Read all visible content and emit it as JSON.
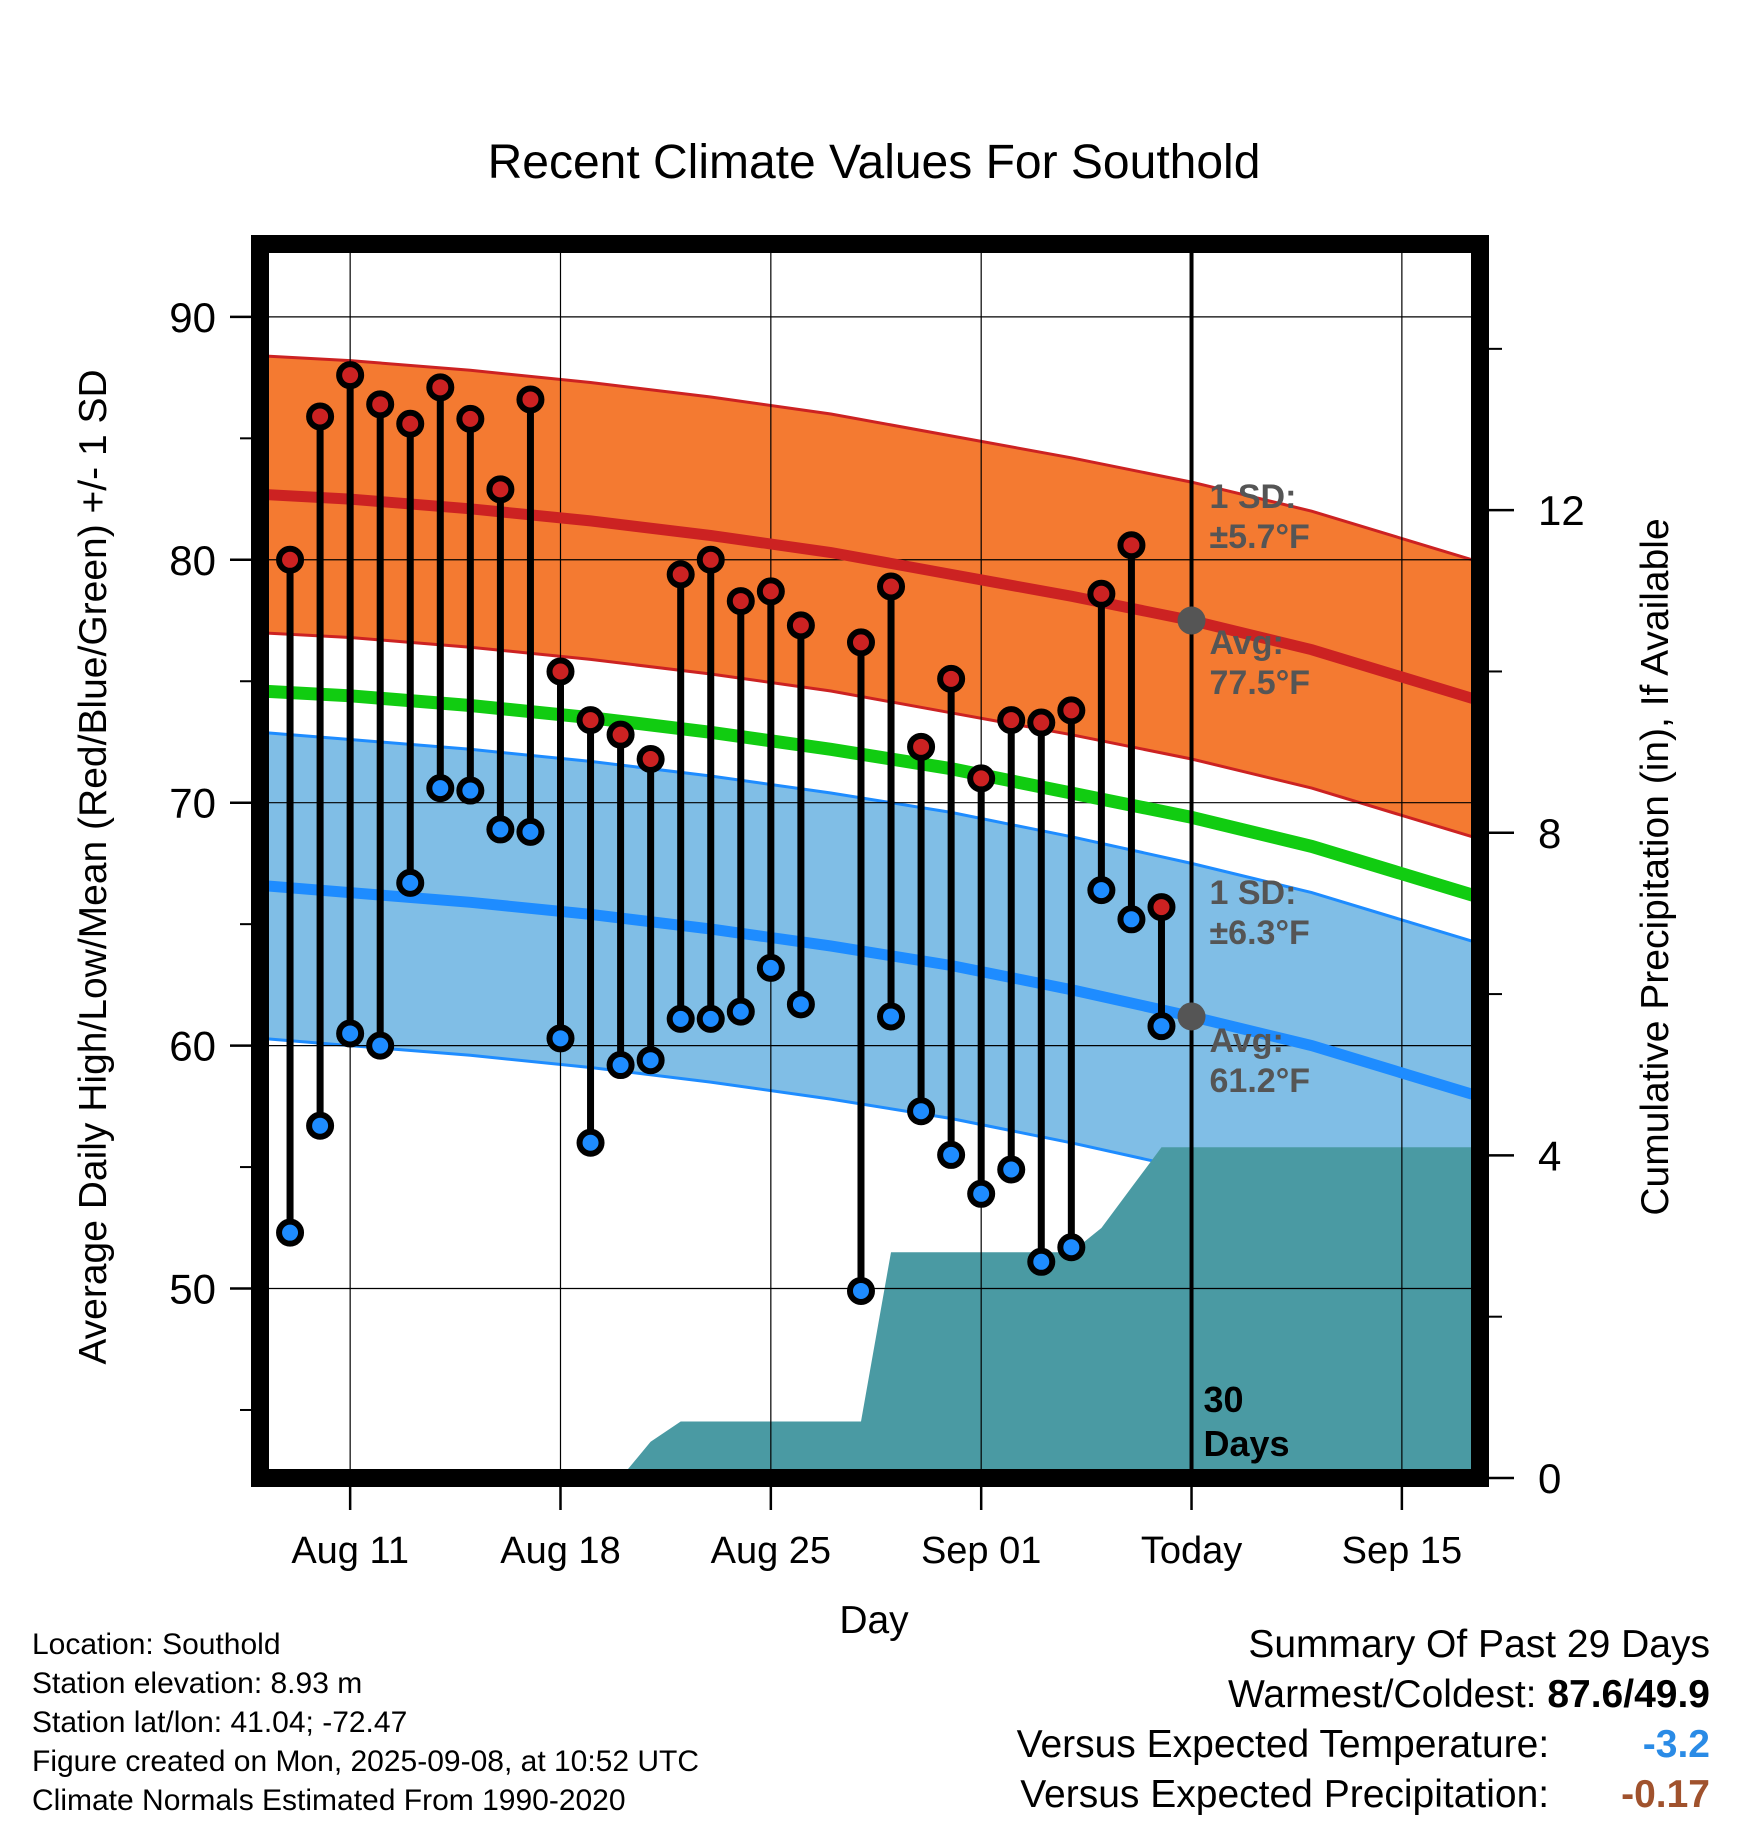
{
  "chart_data": {
    "type": "line",
    "title": "Recent Climate Values For Southold",
    "xlabel": "Day",
    "ylabel": "Average Daily High/Low/Mean (Red/Blue/Green) +/- 1 SD",
    "y2label": "Cumulative Precipitation (in), If Available",
    "x_ticks": [
      "Aug 11",
      "Aug 18",
      "Aug 25",
      "Sep 01",
      "Today",
      "Sep 15"
    ],
    "x_tick_day": [
      -28,
      -21,
      -14,
      -7,
      0,
      7
    ],
    "xlim": [
      -31,
      9.6
    ],
    "ylim": [
      42.2,
      93
    ],
    "yticks": [
      50,
      60,
      70,
      80,
      90
    ],
    "y2lim": [
      0,
      15.3
    ],
    "y2ticks": [
      0,
      4,
      8,
      12
    ],
    "today_label": [
      "30",
      "Days"
    ],
    "days": [
      -30,
      -29,
      -28,
      -27,
      -26,
      -25,
      -24,
      -23,
      -22,
      -21,
      -20,
      -19,
      -18,
      -17,
      -16,
      -15,
      -14,
      -13,
      -11,
      -10,
      -9,
      -8,
      -7,
      -6,
      -5,
      -4,
      -3,
      -2,
      -1
    ],
    "highs": [
      80.0,
      85.9,
      87.6,
      86.4,
      85.6,
      87.1,
      85.8,
      82.9,
      86.6,
      75.4,
      73.4,
      72.8,
      71.8,
      79.4,
      80.0,
      78.3,
      78.7,
      77.3,
      76.6,
      78.9,
      72.3,
      75.1,
      71.0,
      73.4,
      73.3,
      73.8,
      78.6,
      80.6,
      65.7
    ],
    "lows": [
      52.3,
      56.7,
      60.5,
      60.0,
      66.7,
      70.6,
      70.5,
      68.9,
      68.8,
      60.3,
      56.0,
      59.2,
      59.4,
      61.1,
      61.1,
      61.4,
      63.2,
      61.7,
      49.9,
      61.2,
      57.3,
      55.5,
      53.9,
      54.9,
      51.1,
      51.7,
      66.4,
      65.2,
      60.8
    ],
    "normals": {
      "days": [
        -31,
        -28,
        -24,
        -20,
        -16,
        -12,
        -8,
        -4,
        0,
        4,
        9.6
      ],
      "high_avg": [
        82.7,
        82.5,
        82.1,
        81.6,
        81.0,
        80.3,
        79.4,
        78.5,
        77.5,
        76.3,
        74.2
      ],
      "low_avg": [
        66.6,
        66.3,
        65.9,
        65.4,
        64.8,
        64.1,
        63.3,
        62.3,
        61.2,
        60.0,
        57.9
      ],
      "mean_avg": [
        74.6,
        74.4,
        74.0,
        73.5,
        72.9,
        72.2,
        71.4,
        70.4,
        69.4,
        68.2,
        66.1
      ],
      "high_sd": 5.7,
      "low_sd": 6.3
    },
    "precip": {
      "days": [
        -31,
        -19,
        -18,
        -17,
        -16,
        -11,
        -10,
        -9,
        -4,
        -3,
        -2,
        -1,
        9.6
      ],
      "values": [
        0,
        0,
        0.45,
        0.7,
        0.7,
        0.7,
        2.8,
        2.8,
        2.8,
        3.1,
        3.6,
        4.1,
        4.1
      ]
    },
    "today_markers": {
      "high_avg": 77.5,
      "low_avg": 61.2,
      "high_sd_label": [
        "1 SD:",
        "±5.7°F"
      ],
      "high_avg_label": [
        "Avg:",
        "77.5°F"
      ],
      "low_sd_label": [
        "1 SD:",
        "±6.3°F"
      ],
      "low_avg_label": [
        "Avg:",
        "61.2°F"
      ]
    },
    "colors": {
      "high_band": "#f47a31",
      "high_line": "#cc2222",
      "low_band": "#80bee6",
      "low_line": "#1e8cff",
      "mean_line": "#11cc11",
      "precip": "#4a9aa3",
      "high_dot": "#cc2222",
      "low_dot": "#1e8cff",
      "today_dot": "#555555",
      "label_text": "#555555"
    }
  },
  "info": {
    "location": "Location: Southold",
    "elevation": "Station elevation: 8.93 m",
    "latlon": "Station lat/lon: 41.04; -72.47",
    "created": "Figure created on Mon, 2025-09-08, at 10:52 UTC",
    "normals": "Climate Normals Estimated From 1990-2020"
  },
  "summary": {
    "title": "Summary Of Past 29 Days",
    "warm_cold_label": "Warmest/Coldest:",
    "warm_cold_value": "87.6/49.9",
    "temp_label": "Versus Expected Temperature:",
    "temp_value": "-3.2",
    "temp_color": "#2a8be6",
    "precip_label": "Versus Expected Precipitation:",
    "precip_value": "-0.17",
    "precip_color": "#a0522d"
  }
}
